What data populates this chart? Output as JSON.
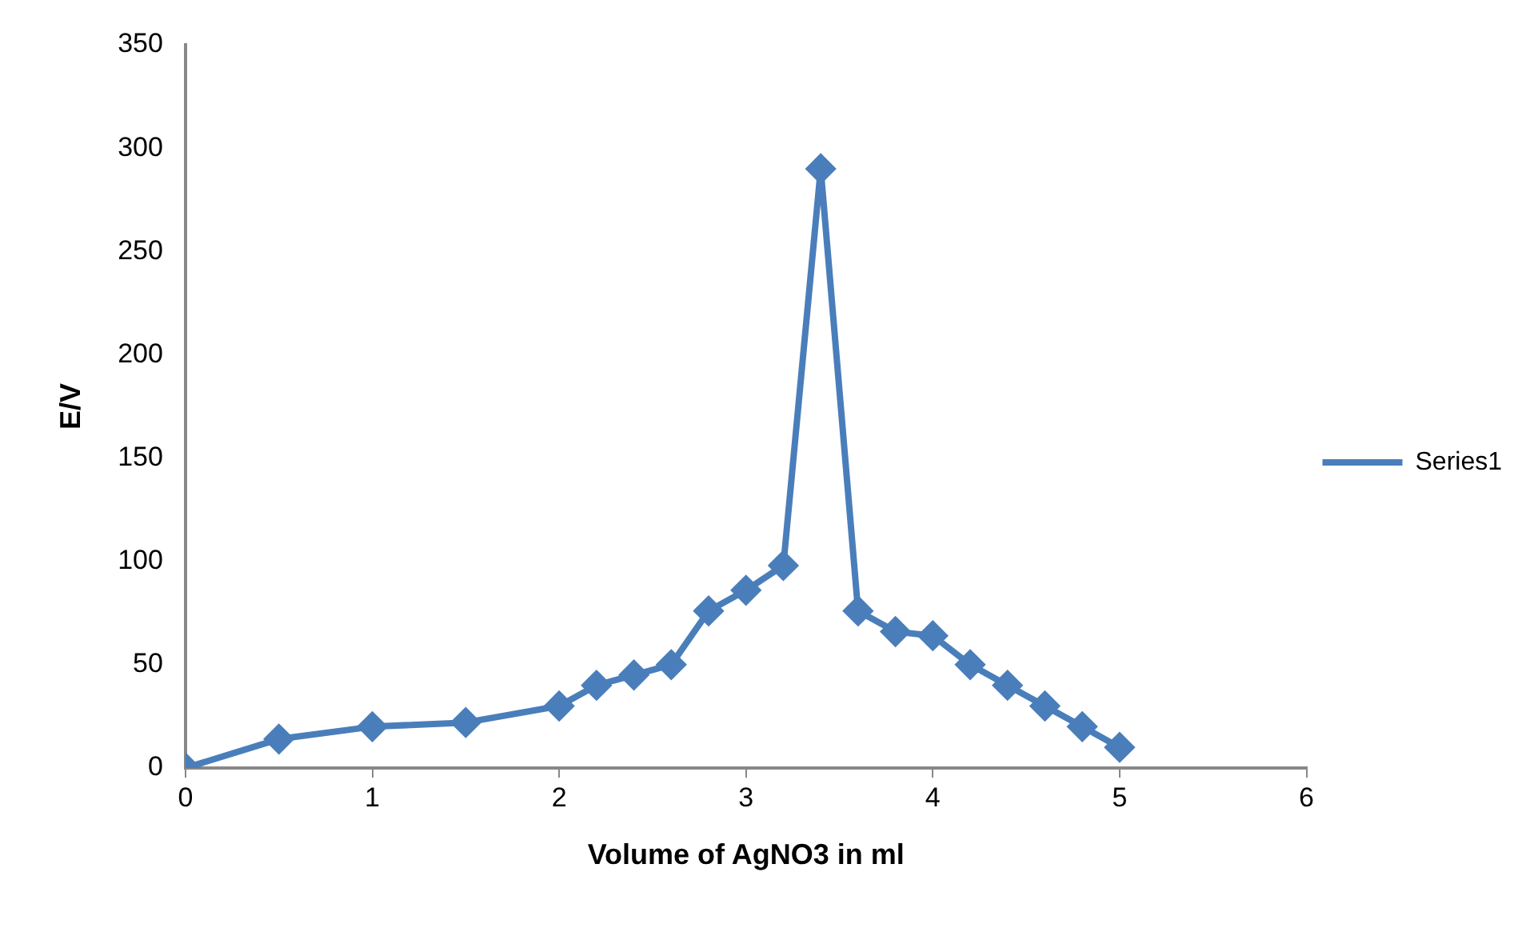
{
  "chart_data": {
    "type": "line",
    "xlabel": "Volume of AgNO3 in ml",
    "ylabel": "E/V",
    "x": [
      0,
      0.5,
      1,
      1.5,
      2,
      2.2,
      2.4,
      2.6,
      2.8,
      3,
      3.2,
      3.4,
      3.6,
      3.8,
      4,
      4.2,
      4.4,
      4.6,
      4.8,
      5
    ],
    "series": [
      {
        "name": "Series1",
        "color": "#4a7ebb",
        "values": [
          0,
          14,
          20,
          22,
          30,
          40,
          45,
          50,
          76,
          86,
          98,
          290,
          76,
          66,
          64,
          50,
          40,
          30,
          20,
          10
        ]
      }
    ],
    "xlim": [
      0,
      6
    ],
    "xticks": [
      0,
      1,
      2,
      3,
      4,
      5,
      6
    ],
    "ylim": [
      0,
      350
    ],
    "yticks": [
      0,
      50,
      100,
      150,
      200,
      250,
      300,
      350
    ],
    "grid": false,
    "legend": "right",
    "marker": "diamond",
    "line_style": "solid"
  }
}
